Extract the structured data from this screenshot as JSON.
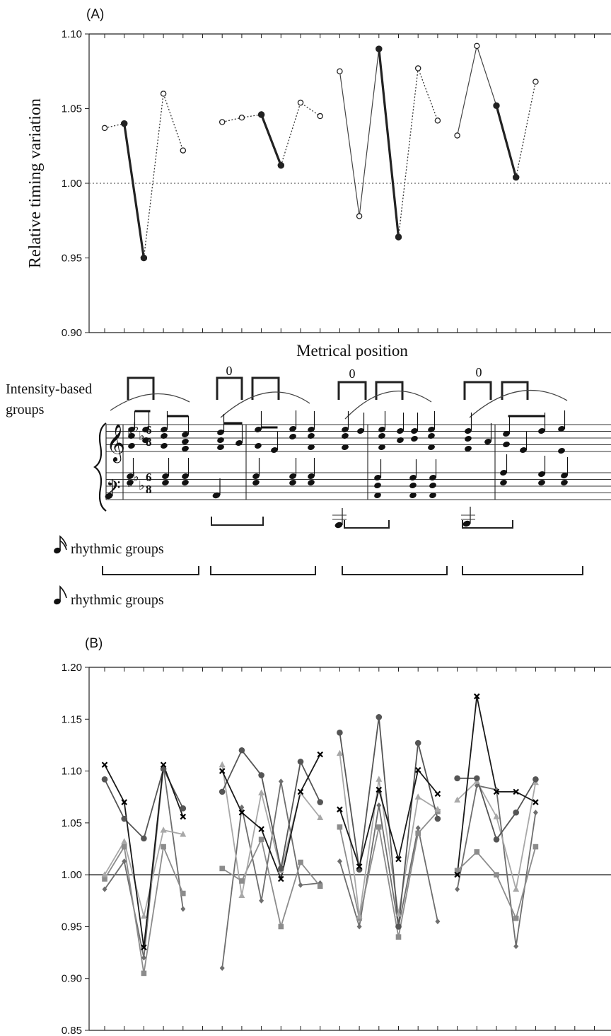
{
  "chart_data": [
    {
      "panel_label": "(A)",
      "type": "line",
      "ylabel": "Relative timing variation",
      "xlabel": "Metrical position",
      "ylim": [
        0.9,
        1.1
      ],
      "yticks": [
        "0.90",
        "0.95",
        "1.00",
        "1.05",
        "1.10"
      ],
      "reference_line": 1.0,
      "segments": [
        {
          "x": [
            1,
            2
          ],
          "y": [
            1.037,
            1.04
          ],
          "style": "dotted",
          "markers": [
            "open",
            "filled"
          ]
        },
        {
          "x": [
            2,
            3
          ],
          "y": [
            1.04,
            0.95
          ],
          "style": "thick",
          "markers": [
            "filled",
            "filled"
          ]
        },
        {
          "x": [
            3,
            4,
            5
          ],
          "y": [
            0.95,
            1.06,
            1.022
          ],
          "style": "dotted",
          "markers": [
            "filled",
            "open",
            "open"
          ]
        },
        {
          "x": [
            7,
            8,
            9
          ],
          "y": [
            1.041,
            1.044,
            1.046
          ],
          "style": "dotted",
          "markers": [
            "open",
            "open",
            "filled"
          ]
        },
        {
          "x": [
            9,
            10
          ],
          "y": [
            1.046,
            1.012
          ],
          "style": "thick",
          "markers": [
            "filled",
            "filled"
          ]
        },
        {
          "x": [
            10,
            11,
            12
          ],
          "y": [
            1.012,
            1.054,
            1.045
          ],
          "style": "dotted",
          "markers": [
            "filled",
            "open",
            "open"
          ]
        },
        {
          "x": [
            13,
            14,
            15
          ],
          "y": [
            1.075,
            0.978,
            1.09
          ],
          "style": "thin",
          "markers": [
            "open",
            "open",
            "filled"
          ]
        },
        {
          "x": [
            15,
            16
          ],
          "y": [
            1.09,
            0.964
          ],
          "style": "thick",
          "markers": [
            "filled",
            "filled"
          ]
        },
        {
          "x": [
            16,
            17,
            18
          ],
          "y": [
            0.964,
            1.077,
            1.042
          ],
          "style": "dotted",
          "markers": [
            "filled",
            "open",
            "open"
          ]
        },
        {
          "x": [
            19,
            20,
            21
          ],
          "y": [
            1.032,
            1.092,
            1.052
          ],
          "style": "thin",
          "markers": [
            "open",
            "open",
            "filled"
          ]
        },
        {
          "x": [
            21,
            22
          ],
          "y": [
            1.052,
            1.004
          ],
          "style": "thick",
          "markers": [
            "filled",
            "filled"
          ]
        },
        {
          "x": [
            22,
            23
          ],
          "y": [
            1.004,
            1.068
          ],
          "style": "dotted",
          "markers": [
            "filled",
            "open"
          ]
        }
      ]
    },
    {
      "panel_label": "(B)",
      "type": "line",
      "ylim": [
        0.85,
        1.2
      ],
      "yticks": [
        "0.85",
        "0.90",
        "0.95",
        "1.00",
        "1.05",
        "1.10",
        "1.15",
        "1.20"
      ],
      "reference_line": 1.0,
      "groups": [
        [
          1,
          5
        ],
        [
          7,
          12
        ],
        [
          13,
          18
        ],
        [
          19,
          23
        ]
      ],
      "series": [
        {
          "marker": "cross",
          "color": "#1a1a1a",
          "values": [
            1.106,
            1.07,
            0.93,
            1.106,
            1.056,
            null,
            1.1,
            1.06,
            1.044,
            0.996,
            1.08,
            1.116,
            1.063,
            1.008,
            1.082,
            1.015,
            1.101,
            1.078,
            1.0,
            1.172,
            1.08,
            1.08,
            1.07
          ]
        },
        {
          "marker": "circle",
          "color": "#555555",
          "values": [
            1.092,
            1.054,
            1.035,
            1.102,
            1.064,
            null,
            1.08,
            1.12,
            1.096,
            1.006,
            1.109,
            1.07,
            1.137,
            1.005,
            1.152,
            0.95,
            1.127,
            1.054,
            1.093,
            1.093,
            1.034,
            1.06,
            1.092
          ]
        },
        {
          "marker": "triangle",
          "color": "#a8a8a8",
          "values": [
            1.0,
            1.032,
            0.96,
            1.043,
            1.039,
            null,
            1.106,
            0.98,
            1.079,
            1.004,
            1.079,
            1.055,
            1.117,
            0.96,
            1.092,
            0.962,
            1.075,
            1.063,
            1.072,
            1.09,
            1.056,
            0.986,
            1.089
          ]
        },
        {
          "marker": "square",
          "color": "#8c8c8c",
          "values": [
            0.996,
            1.027,
            0.905,
            1.027,
            0.982,
            null,
            1.006,
            0.994,
            1.034,
            0.95,
            1.012,
            0.989,
            1.046,
            0.958,
            1.046,
            0.94,
            1.04,
            1.061,
            1.004,
            1.022,
            1.0,
            0.958,
            1.027
          ]
        },
        {
          "marker": "diamond",
          "color": "#6e6e6e",
          "values": [
            0.986,
            1.013,
            0.92,
            1.104,
            0.967,
            null,
            0.91,
            1.065,
            0.975,
            1.09,
            0.99,
            0.992,
            1.013,
            0.95,
            1.067,
            0.95,
            1.045,
            0.955,
            0.986,
            1.086,
            1.082,
            0.931,
            1.06
          ]
        }
      ]
    }
  ],
  "score": {
    "intensity_label_line1": "Intensity-based",
    "intensity_label_line2": "groups",
    "group_zero_marks": [
      "0",
      "0",
      "0"
    ],
    "time_signature": "6\n8",
    "sixteenth_label": "rhythmic groups",
    "eighth_label": "rhythmic groups"
  }
}
